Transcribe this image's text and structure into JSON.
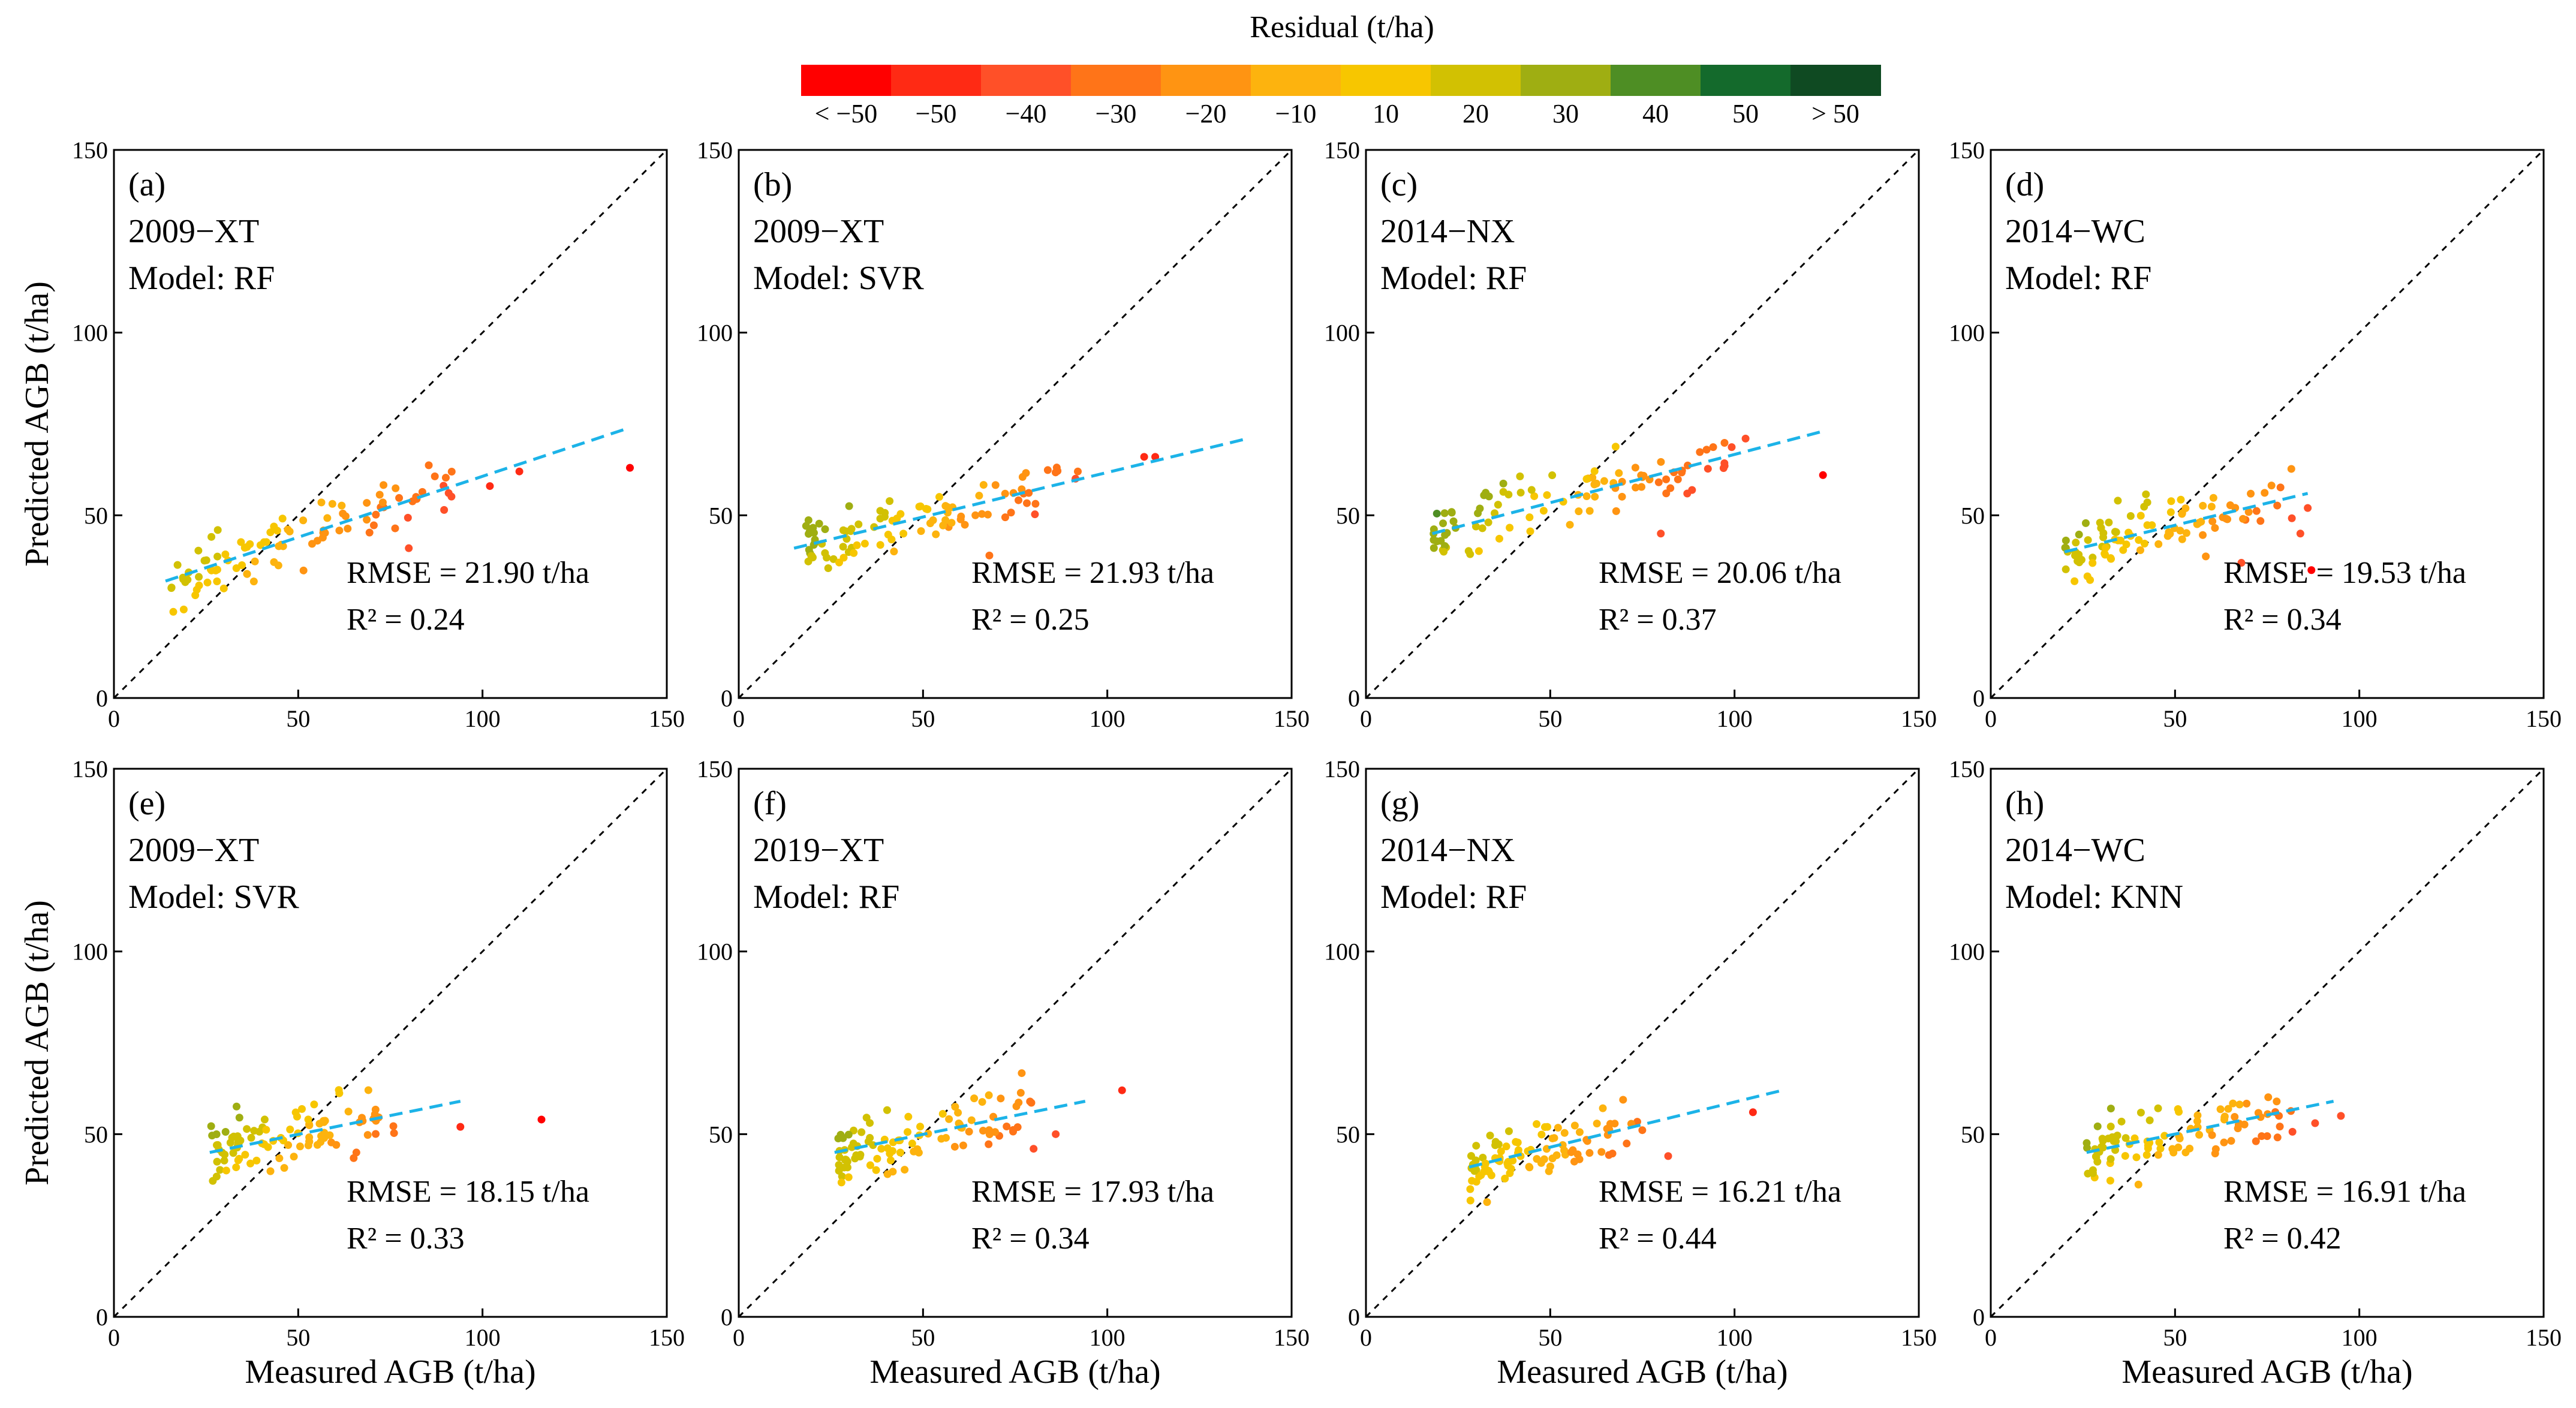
{
  "legend": {
    "title": "Residual (t/ha)",
    "labels": [
      "< −50",
      "−50",
      "−40",
      "−30",
      "−20",
      "−10",
      "10",
      "20",
      "30",
      "40",
      "50",
      "> 50"
    ],
    "colors": [
      "#ff0000",
      "#ff2a14",
      "#ff5028",
      "#ff7418",
      "#ff9412",
      "#fdb30e",
      "#f7c600",
      "#d2c102",
      "#9fae12",
      "#4e8e24",
      "#146a2c",
      "#0f4a22"
    ]
  },
  "axis_text": {
    "ylabel": "Predicted AGB (t/ha)",
    "xlabel": "Measured AGB (t/ha)",
    "x_ticks": [
      "0",
      "50",
      "100",
      "150"
    ],
    "y_ticks": [
      "0",
      "50",
      "100",
      "150"
    ]
  },
  "chart_data": [
    {
      "type": "scatter",
      "panel": "(a)",
      "dataset": "2009−XT",
      "model": "Model: RF",
      "rmse": "RMSE = 21.90 t/ha",
      "r2": "R² = 0.24",
      "xlim": [
        0,
        150
      ],
      "ylim": [
        0,
        150
      ],
      "fit": [
        [
          14,
          32
        ],
        [
          140,
          74
        ]
      ],
      "seed": 11,
      "cluster": {
        "x_range": [
          14,
          92
        ],
        "outliers": [
          [
            110,
            62
          ],
          [
            140,
            63
          ],
          [
            102,
            58
          ],
          [
            80,
            41
          ]
        ]
      }
    },
    {
      "type": "scatter",
      "panel": "(b)",
      "dataset": "2009−XT",
      "model": "Model: SVR",
      "rmse": "RMSE = 21.93 t/ha",
      "r2": "R² = 0.25",
      "xlim": [
        0,
        150
      ],
      "ylim": [
        0,
        150
      ],
      "fit": [
        [
          15,
          41
        ],
        [
          138,
          71
        ]
      ],
      "seed": 23,
      "cluster": {
        "x_range": [
          18,
          92
        ],
        "outliers": [
          [
            110,
            66
          ],
          [
            113,
            66
          ],
          [
            92,
            62
          ],
          [
            68,
            39
          ]
        ]
      }
    },
    {
      "type": "scatter",
      "panel": "(c)",
      "dataset": "2014−NX",
      "model": "Model: RF",
      "rmse": "RMSE = 20.06 t/ha",
      "r2": "R² = 0.37",
      "xlim": [
        0,
        150
      ],
      "ylim": [
        0,
        150
      ],
      "fit": [
        [
          18,
          45
        ],
        [
          124,
          73
        ]
      ],
      "seed": 37,
      "cluster": {
        "x_range": [
          18,
          100
        ],
        "outliers": [
          [
            124,
            61
          ],
          [
            103,
            71
          ],
          [
            80,
            45
          ]
        ]
      }
    },
    {
      "type": "scatter",
      "panel": "(d)",
      "dataset": "2014−WC",
      "model": "Model: RF",
      "rmse": "RMSE = 19.53 t/ha",
      "r2": "R² = 0.34",
      "xlim": [
        0,
        150
      ],
      "ylim": [
        0,
        150
      ],
      "fit": [
        [
          20,
          40
        ],
        [
          86,
          56
        ]
      ],
      "seed": 41,
      "cluster": {
        "x_range": [
          20,
          82
        ],
        "outliers": [
          [
            87,
            35
          ],
          [
            84,
            45
          ],
          [
            86,
            52
          ],
          [
            68,
            37
          ]
        ]
      }
    },
    {
      "type": "scatter",
      "panel": "(e)",
      "dataset": "2009−XT",
      "model": "Model: SVR",
      "rmse": "RMSE = 18.15 t/ha",
      "r2": "R² = 0.33",
      "xlim": [
        0,
        150
      ],
      "ylim": [
        0,
        150
      ],
      "fit": [
        [
          26,
          45
        ],
        [
          94,
          59
        ]
      ],
      "seed": 53,
      "cluster": {
        "x_range": [
          26,
          76
        ],
        "outliers": [
          [
            94,
            52
          ],
          [
            116,
            54
          ]
        ]
      }
    },
    {
      "type": "scatter",
      "panel": "(f)",
      "dataset": "2019−XT",
      "model": "Model: RF",
      "rmse": "RMSE = 17.93 t/ha",
      "r2": "R² = 0.34",
      "xlim": [
        0,
        150
      ],
      "ylim": [
        0,
        150
      ],
      "fit": [
        [
          26,
          45
        ],
        [
          94,
          59
        ]
      ],
      "seed": 67,
      "cluster": {
        "x_range": [
          27,
          80
        ],
        "outliers": [
          [
            104,
            62
          ],
          [
            86,
            50
          ],
          [
            80,
            46
          ]
        ]
      }
    },
    {
      "type": "scatter",
      "panel": "(g)",
      "dataset": "2014−NX",
      "model": "Model: RF",
      "rmse": "RMSE = 16.21 t/ha",
      "r2": "R² = 0.44",
      "xlim": [
        0,
        150
      ],
      "ylim": [
        0,
        150
      ],
      "fit": [
        [
          28,
          41
        ],
        [
          113,
          62
        ]
      ],
      "seed": 79,
      "cluster": {
        "x_range": [
          28,
          75
        ],
        "outliers": [
          [
            105,
            56
          ],
          [
            82,
            44
          ]
        ]
      }
    },
    {
      "type": "scatter",
      "panel": "(h)",
      "dataset": "2014−WC",
      "model": "Model: KNN",
      "rmse": "RMSE = 16.91 t/ha",
      "r2": "R² = 0.42",
      "xlim": [
        0,
        150
      ],
      "ylim": [
        0,
        150
      ],
      "fit": [
        [
          26,
          45
        ],
        [
          93,
          59
        ]
      ],
      "seed": 83,
      "cluster": {
        "x_range": [
          26,
          82
        ],
        "outliers": [
          [
            95,
            55
          ],
          [
            88,
            53
          ]
        ]
      }
    }
  ]
}
